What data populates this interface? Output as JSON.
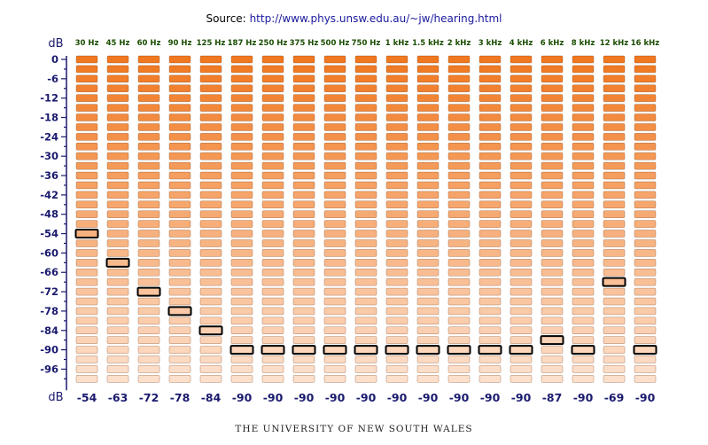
{
  "source": {
    "label": "Source:",
    "url": "http://www.phys.unsw.edu.au/~jw/hearing.html"
  },
  "footer": "THE UNIVERSITY OF NEW SOUTH WALES",
  "chart_data": {
    "type": "bar",
    "title": "",
    "ylabel": "dB",
    "xlabel": "dB",
    "ylim": [
      -102,
      0
    ],
    "step_db": -3,
    "y_ticks": [
      "0",
      "-6",
      "-12",
      "-18",
      "-24",
      "-30",
      "-36",
      "-42",
      "-48",
      "-54",
      "-60",
      "-66",
      "-72",
      "-78",
      "-84",
      "-90",
      "-96"
    ],
    "categories": [
      "30 Hz",
      "45 Hz",
      "60 Hz",
      "90 Hz",
      "125 Hz",
      "187 Hz",
      "250 Hz",
      "375 Hz",
      "500 Hz",
      "750 Hz",
      "1 kHz",
      "1.5 kHz",
      "2 kHz",
      "3 kHz",
      "4 kHz",
      "6 kHz",
      "8 kHz",
      "12 kHz",
      "16 kHz"
    ],
    "values": [
      -54,
      -63,
      -72,
      -78,
      -84,
      -90,
      -90,
      -90,
      -90,
      -90,
      -90,
      -90,
      -90,
      -90,
      -90,
      -87,
      -90,
      -69,
      -90
    ],
    "value_labels": [
      "-54",
      "-63",
      "-72",
      "-78",
      "-84",
      "-90",
      "-90",
      "-90",
      "-90",
      "-90",
      "-90",
      "-90",
      "-90",
      "-90",
      "-90",
      "-87",
      "-90",
      "-69",
      "-90"
    ],
    "colors": {
      "frequency_label": "#1a4d00",
      "axis_label": "#1a1a6e",
      "value_label": "#1a1a6e",
      "cell_loud": "#f07820",
      "cell_soft": "#fde0cc",
      "cell_border": "#7a3a10",
      "threshold_border": "#000000"
    }
  }
}
